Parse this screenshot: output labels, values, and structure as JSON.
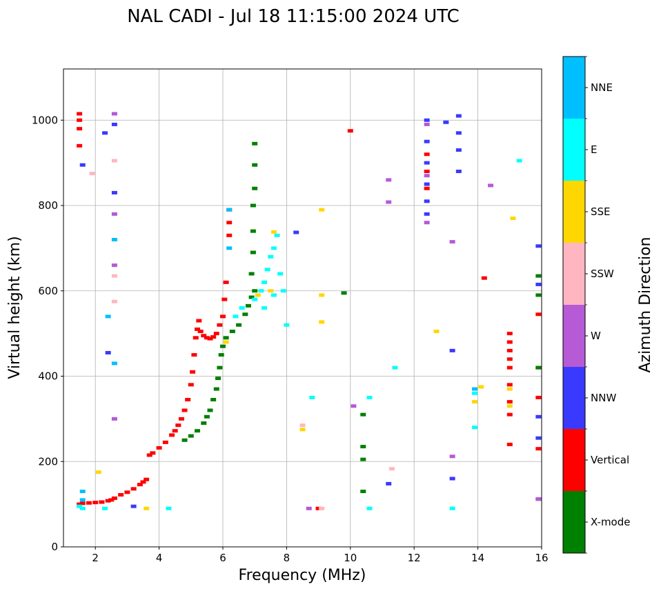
{
  "chart_data": {
    "type": "scatter",
    "title": "NAL CADI - Jul 18 11:15:00 2024 UTC",
    "xlabel": "Frequency (MHz)",
    "ylabel": "Virtual height (km)",
    "xlim": [
      1,
      16
    ],
    "ylim": [
      0,
      1120
    ],
    "xticks": [
      2,
      4,
      6,
      8,
      10,
      12,
      14,
      16
    ],
    "yticks": [
      0,
      200,
      400,
      600,
      800,
      1000
    ],
    "grid": true,
    "colorbar": {
      "label": "Azimuth Direction",
      "categories": [
        {
          "name": "X-mode",
          "color": "#008000"
        },
        {
          "name": "Vertical",
          "color": "#ff0000"
        },
        {
          "name": "NNW",
          "color": "#3a3aff"
        },
        {
          "name": "W",
          "color": "#b65ad6"
        },
        {
          "name": "SSW",
          "color": "#ffb6c1"
        },
        {
          "name": "SSE",
          "color": "#ffd700"
        },
        {
          "name": "E",
          "color": "#00ffff"
        },
        {
          "name": "NNE",
          "color": "#00bfff"
        }
      ]
    },
    "series": [
      {
        "name": "Vertical",
        "color": "#ff0000",
        "points": [
          [
            1.5,
            100
          ],
          [
            1.6,
            102
          ],
          [
            1.8,
            103
          ],
          [
            2.0,
            104
          ],
          [
            2.2,
            105
          ],
          [
            2.4,
            108
          ],
          [
            2.5,
            110
          ],
          [
            2.6,
            114
          ],
          [
            2.8,
            122
          ],
          [
            3.0,
            128
          ],
          [
            3.2,
            136
          ],
          [
            3.4,
            146
          ],
          [
            3.5,
            152
          ],
          [
            3.6,
            158
          ],
          [
            3.7,
            215
          ],
          [
            3.8,
            220
          ],
          [
            4.0,
            232
          ],
          [
            4.2,
            245
          ],
          [
            4.4,
            262
          ],
          [
            4.5,
            272
          ],
          [
            4.6,
            285
          ],
          [
            4.7,
            300
          ],
          [
            4.8,
            320
          ],
          [
            4.9,
            345
          ],
          [
            5.0,
            380
          ],
          [
            5.05,
            410
          ],
          [
            5.1,
            450
          ],
          [
            5.15,
            490
          ],
          [
            5.2,
            510
          ],
          [
            5.25,
            530
          ],
          [
            5.3,
            505
          ],
          [
            5.4,
            495
          ],
          [
            5.5,
            490
          ],
          [
            5.6,
            488
          ],
          [
            5.7,
            492
          ],
          [
            5.8,
            500
          ],
          [
            5.9,
            520
          ],
          [
            6.0,
            540
          ],
          [
            6.05,
            580
          ],
          [
            6.1,
            620
          ],
          [
            6.2,
            730
          ],
          [
            6.2,
            760
          ],
          [
            6.2,
            790
          ],
          [
            1.5,
            940
          ],
          [
            1.5,
            980
          ],
          [
            1.5,
            1000
          ],
          [
            1.5,
            1015
          ],
          [
            10.0,
            975
          ],
          [
            14.2,
            630
          ],
          [
            15.9,
            545
          ],
          [
            15.9,
            420
          ],
          [
            15.9,
            350
          ],
          [
            15.9,
            230
          ],
          [
            9.0,
            90
          ],
          [
            15.0,
            240
          ],
          [
            15.0,
            310
          ],
          [
            15.0,
            340
          ],
          [
            15.0,
            380
          ],
          [
            15.0,
            420
          ],
          [
            15.0,
            440
          ],
          [
            15.0,
            460
          ],
          [
            15.0,
            480
          ],
          [
            15.0,
            500
          ],
          [
            12.4,
            840
          ],
          [
            12.4,
            880
          ],
          [
            12.4,
            920
          ]
        ]
      },
      {
        "name": "X-mode",
        "color": "#008000",
        "points": [
          [
            4.8,
            250
          ],
          [
            5.0,
            260
          ],
          [
            5.2,
            272
          ],
          [
            5.4,
            290
          ],
          [
            5.5,
            305
          ],
          [
            5.6,
            320
          ],
          [
            5.7,
            345
          ],
          [
            5.8,
            370
          ],
          [
            5.85,
            395
          ],
          [
            5.9,
            420
          ],
          [
            5.95,
            450
          ],
          [
            6.0,
            470
          ],
          [
            6.1,
            490
          ],
          [
            6.3,
            505
          ],
          [
            6.5,
            520
          ],
          [
            6.7,
            545
          ],
          [
            6.8,
            565
          ],
          [
            6.9,
            585
          ],
          [
            7.0,
            600
          ],
          [
            6.9,
            640
          ],
          [
            6.95,
            690
          ],
          [
            6.95,
            740
          ],
          [
            6.95,
            800
          ],
          [
            7.0,
            840
          ],
          [
            7.0,
            895
          ],
          [
            7.0,
            945
          ],
          [
            9.8,
            595
          ],
          [
            10.4,
            310
          ],
          [
            10.4,
            235
          ],
          [
            10.4,
            205
          ],
          [
            10.4,
            130
          ],
          [
            15.9,
            635
          ],
          [
            15.9,
            590
          ],
          [
            15.9,
            420
          ]
        ]
      },
      {
        "name": "E",
        "color": "#00ffff",
        "points": [
          [
            1.5,
            95
          ],
          [
            1.6,
            90
          ],
          [
            2.3,
            90
          ],
          [
            4.3,
            90
          ],
          [
            6.4,
            540
          ],
          [
            6.6,
            560
          ],
          [
            7.0,
            580
          ],
          [
            7.2,
            600
          ],
          [
            7.3,
            620
          ],
          [
            7.4,
            650
          ],
          [
            7.5,
            680
          ],
          [
            7.6,
            700
          ],
          [
            7.7,
            730
          ],
          [
            7.9,
            600
          ],
          [
            7.8,
            640
          ],
          [
            7.3,
            560
          ],
          [
            7.6,
            590
          ],
          [
            8.0,
            520
          ],
          [
            8.8,
            350
          ],
          [
            10.6,
            350
          ],
          [
            10.6,
            90
          ],
          [
            11.4,
            420
          ],
          [
            13.2,
            90
          ],
          [
            13.9,
            280
          ],
          [
            13.9,
            360
          ],
          [
            15.3,
            905
          ]
        ]
      },
      {
        "name": "NNE",
        "color": "#00bfff",
        "points": [
          [
            1.6,
            110
          ],
          [
            1.6,
            130
          ],
          [
            2.6,
            430
          ],
          [
            2.6,
            720
          ],
          [
            2.4,
            540
          ],
          [
            6.2,
            700
          ],
          [
            6.2,
            790
          ],
          [
            13.9,
            370
          ]
        ]
      },
      {
        "name": "NNW",
        "color": "#3a3aff",
        "points": [
          [
            1.6,
            895
          ],
          [
            2.3,
            970
          ],
          [
            2.4,
            455
          ],
          [
            2.6,
            990
          ],
          [
            2.6,
            830
          ],
          [
            3.2,
            95
          ],
          [
            12.4,
            780
          ],
          [
            12.4,
            810
          ],
          [
            12.4,
            850
          ],
          [
            12.4,
            900
          ],
          [
            12.4,
            950
          ],
          [
            12.4,
            1000
          ],
          [
            13.0,
            995
          ],
          [
            13.4,
            1010
          ],
          [
            13.4,
            970
          ],
          [
            13.4,
            930
          ],
          [
            13.4,
            880
          ],
          [
            13.2,
            460
          ],
          [
            13.2,
            160
          ],
          [
            11.2,
            148
          ],
          [
            8.3,
            737
          ],
          [
            15.9,
            705
          ],
          [
            15.9,
            615
          ],
          [
            15.9,
            305
          ],
          [
            15.9,
            255
          ],
          [
            15.9,
            112
          ]
        ]
      },
      {
        "name": "W",
        "color": "#b65ad6",
        "points": [
          [
            2.6,
            1015
          ],
          [
            2.6,
            780
          ],
          [
            2.6,
            660
          ],
          [
            2.6,
            300
          ],
          [
            12.4,
            760
          ],
          [
            12.4,
            870
          ],
          [
            12.4,
            990
          ],
          [
            13.2,
            715
          ],
          [
            13.2,
            212
          ],
          [
            14.4,
            847
          ],
          [
            11.2,
            860
          ],
          [
            11.2,
            808
          ],
          [
            10.1,
            330
          ],
          [
            8.7,
            90
          ],
          [
            15.9,
            112
          ]
        ]
      },
      {
        "name": "SSW",
        "color": "#ffb6c1",
        "points": [
          [
            1.9,
            875
          ],
          [
            2.6,
            905
          ],
          [
            2.6,
            635
          ],
          [
            2.6,
            575
          ],
          [
            8.5,
            285
          ],
          [
            11.3,
            183
          ],
          [
            9.1,
            90
          ]
        ]
      },
      {
        "name": "SSE",
        "color": "#ffd700",
        "points": [
          [
            2.1,
            175
          ],
          [
            3.6,
            90
          ],
          [
            6.1,
            480
          ],
          [
            7.1,
            590
          ],
          [
            7.5,
            600
          ],
          [
            7.6,
            738
          ],
          [
            9.1,
            790
          ],
          [
            9.1,
            590
          ],
          [
            9.1,
            527
          ],
          [
            8.5,
            275
          ],
          [
            12.7,
            505
          ],
          [
            13.9,
            340
          ],
          [
            14.1,
            375
          ],
          [
            15.1,
            770
          ],
          [
            15.0,
            330
          ],
          [
            15.0,
            370
          ]
        ]
      }
    ]
  }
}
